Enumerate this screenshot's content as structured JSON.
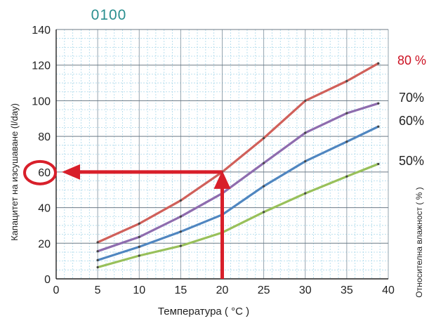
{
  "chart_data": {
    "type": "line",
    "title": "0100",
    "xlabel": "Температура ( °C )",
    "ylabel": "Капацитет на изсушаване (l/day)",
    "y2label": "Относителна влажност ( % )",
    "xlim": [
      0,
      40
    ],
    "ylim": [
      0,
      140
    ],
    "x_ticks": [
      "0",
      "5",
      "10",
      "15",
      "20",
      "25",
      "30",
      "35",
      "40"
    ],
    "y_ticks": [
      "0",
      "20",
      "40",
      "60",
      "80",
      "100",
      "120",
      "140"
    ],
    "grid": true,
    "x": [
      5,
      10,
      15,
      20,
      25,
      30,
      35,
      38.8
    ],
    "series": [
      {
        "name": "80 %",
        "color": "#d0605a",
        "label_color": "#cc1122",
        "values": [
          20.5,
          31,
          44,
          60,
          79,
          100,
          111,
          121
        ]
      },
      {
        "name": "70%",
        "color": "#8e6cae",
        "label_color": "#222222",
        "values": [
          15.5,
          23.5,
          35,
          48,
          65,
          82,
          93,
          98.5
        ]
      },
      {
        "name": "60%",
        "color": "#4f86c0",
        "label_color": "#222222",
        "values": [
          10.5,
          18,
          26.5,
          36,
          52,
          66,
          77,
          85.5
        ]
      },
      {
        "name": "50%",
        "color": "#98c05a",
        "label_color": "#222222",
        "values": [
          6.5,
          13,
          18.5,
          26,
          37.5,
          48,
          57.5,
          64.5
        ]
      }
    ],
    "annotations": {
      "arrow_color": "#d81f2a",
      "highlight_x": 20,
      "highlight_y": 60,
      "highlight_tick": "60"
    }
  }
}
